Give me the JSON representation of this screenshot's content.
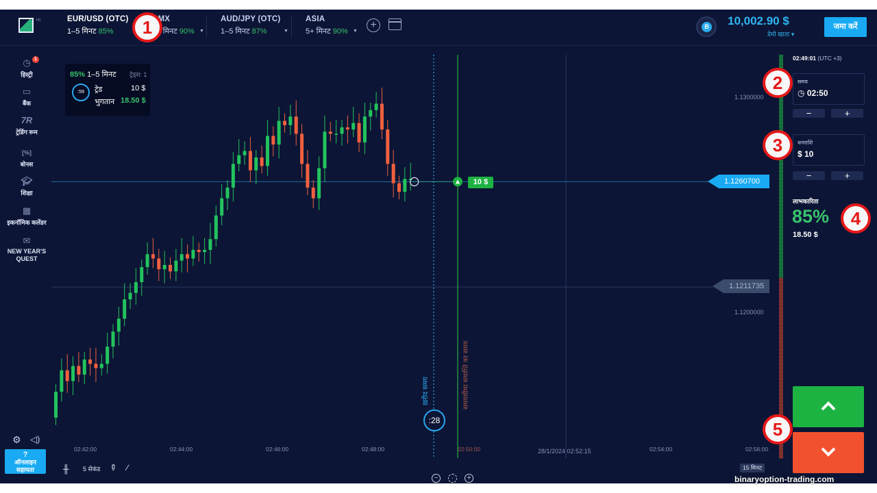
{
  "topbar": {
    "logo_text": "HI",
    "assets": [
      {
        "name": "EUR/USD (OTC)",
        "time": "1–5 मिनट",
        "pct": "85%"
      },
      {
        "name": "CMX",
        "time": "5+ मिनट",
        "pct": "90%"
      },
      {
        "name": "AUD/JPY (OTC)",
        "time": "1–5 मिनट",
        "pct": "87%"
      },
      {
        "name": "ASIA",
        "time": "5+ मिनट",
        "pct": "90%"
      }
    ],
    "badge_letter": "B",
    "balance": "10,002.90 $",
    "account_type": "डेमो खाता",
    "deposit_label": "जमा करें"
  },
  "sidebar": {
    "items": [
      {
        "label": "हिस्ट्री",
        "icon": "history-icon",
        "badge": "1"
      },
      {
        "label": "बैंक",
        "icon": "wallet-icon"
      },
      {
        "label": "ट्रेडिंग रूम",
        "icon": "trading-room-icon"
      },
      {
        "label": "बोनस",
        "icon": "bonus-icon"
      },
      {
        "label": "शिक्षा",
        "icon": "education-icon"
      },
      {
        "label": "इकनॉमिक कलेंडर",
        "icon": "calendar-icon"
      },
      {
        "label": "NEW YEAR'S QUEST",
        "icon": "quest-icon"
      }
    ],
    "help_icon": "?",
    "help_label": "ऑनलाइन सहायता"
  },
  "trade_card": {
    "pct": "85%",
    "duration": "1–5 मिनट",
    "trades_label": "ट्रेड्स: 1",
    "timer": ":59",
    "trade_label": "ट्रेड",
    "trade_value": "10 $",
    "payout_label": "भुगतान",
    "payout_value": "18.50 $"
  },
  "chart": {
    "current_price": "1.1260700",
    "previous_price": "1.1211735",
    "y_ticks": [
      "1.1300000",
      "1.1200000"
    ],
    "x_ticks": [
      "02:42:00",
      "02:44:00",
      "02:46:00",
      "02:48:00",
      "02:50:00",
      "28/1/2024 02:52:15",
      "02:54:00",
      "02:56:00"
    ],
    "purchase_time_label": "ख़रीद समय",
    "expiry_time_label": "समयसीमा समाप्ति का समय",
    "countdown": ":28",
    "deal_amount": "10 $",
    "timeframe": "15 मिनट",
    "candle_interval": "5 सेकंड"
  },
  "chart_data": {
    "type": "candlestick",
    "x_range": [
      "02:41:00",
      "02:57:00"
    ],
    "y_ticks": [
      1.13,
      1.12
    ],
    "current_price": 1.12607,
    "reference_price": 1.1211735,
    "purchase_time": "02:49:40",
    "expiry_time": "02:50:00",
    "candle_closes": [
      1.1163,
      1.1173,
      1.1168,
      1.1175,
      1.1171,
      1.1178,
      1.1176,
      1.1174,
      1.1176,
      1.1184,
      1.1191,
      1.1197,
      1.1206,
      1.1209,
      1.1214,
      1.1221,
      1.1227,
      1.1225,
      1.122,
      1.1222,
      1.1219,
      1.1224,
      1.1227,
      1.1225,
      1.1229,
      1.1228,
      1.1229,
      1.1234,
      1.1245,
      1.1253,
      1.1258,
      1.1269,
      1.1273,
      1.1275,
      1.1266,
      1.1272,
      1.1268,
      1.1282,
      1.1278,
      1.1289,
      1.1287,
      1.1291,
      1.1283,
      1.1269,
      1.1258,
      1.1253,
      1.1267,
      1.1284,
      1.1283,
      1.1283,
      1.1286,
      1.1285,
      1.1288,
      1.1279,
      1.1291,
      1.1294,
      1.1297,
      1.1285,
      1.1269,
      1.126,
      1.1256,
      1.1262,
      1.1262
    ]
  },
  "right_panel": {
    "clock": "02:49:01",
    "timezone": "(UTC +3)",
    "time_label": "समय",
    "time_value": "02:50",
    "amount_label": "धनराशि",
    "amount_value": "$ 10",
    "minus": "−",
    "plus": "+",
    "profit_label": "लाभकारिता",
    "profit_pct": "85%",
    "profit_amount": "18.50 $"
  },
  "annotations": [
    "1",
    "2",
    "3",
    "4",
    "5"
  ],
  "watermark": "binaryoption-trading.com",
  "colors": {
    "bg": "#0c1535",
    "up": "#1db343",
    "down": "#f1512f",
    "accent": "#19aaf3",
    "marker": "#e51919"
  }
}
